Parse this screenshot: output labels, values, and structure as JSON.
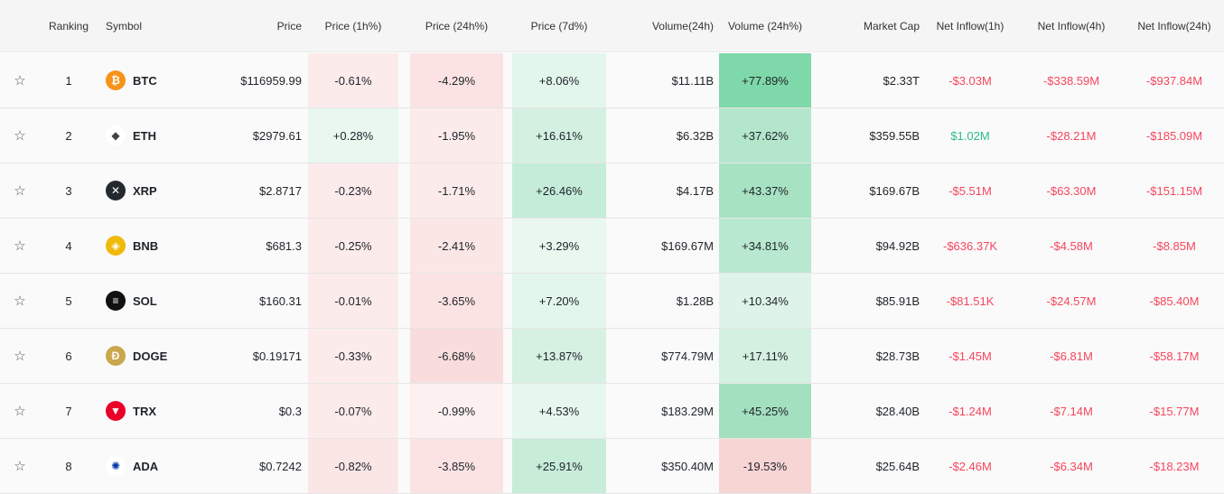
{
  "headers": {
    "ranking": "Ranking",
    "symbol": "Symbol",
    "price": "Price",
    "price_1h": "Price (1h%)",
    "price_24h": "Price (24h%)",
    "price_7d": "Price (7d%)",
    "volume_24h": "Volume(24h)",
    "volume_24h_pct": "Volume (24h%)",
    "market_cap": "Market Cap",
    "net_inflow_1h": "Net Inflow(1h)",
    "net_inflow_4h": "Net Inflow(4h)",
    "net_inflow_24h": "Net Inflow(24h)"
  },
  "star_icon": "☆",
  "colors": {
    "negative_text": "#f6465d",
    "positive_text": "#2ebd85",
    "heat_red_light": "#fcebeb",
    "heat_red": "#fbe3e3",
    "heat_red_strong": "#f8d5d5",
    "heat_green_light": "#e3f6ec",
    "heat_green": "#c5ecd9",
    "heat_green_strong": "#7fd8a9"
  },
  "rows": [
    {
      "rank": "1",
      "symbol": "BTC",
      "icon": "bitcoin-icon",
      "icon_bg": "#f7931a",
      "icon_glyph": "₿",
      "price": "$116959.99",
      "p1h": "-0.61%",
      "p24h": "-4.29%",
      "p7d": "+8.06%",
      "volume": "$11.11B",
      "v24": "+77.89%",
      "mcap": "$2.33T",
      "n1h": "-$3.03M",
      "n4h": "-$338.59M",
      "n24h": "-$937.84M",
      "bg": {
        "p1h": "#fcebeb",
        "p24h": "#fbe3e3",
        "p7d": "#e3f6ec",
        "v24": "#7fd8a9"
      },
      "sign": {
        "n1h": "neg",
        "n4h": "neg",
        "n24h": "neg"
      }
    },
    {
      "rank": "2",
      "symbol": "ETH",
      "icon": "ethereum-icon",
      "icon_bg": "#ffffff",
      "icon_glyph": "◆",
      "price": "$2979.61",
      "p1h": "+0.28%",
      "p24h": "-1.95%",
      "p7d": "+16.61%",
      "volume": "$6.32B",
      "v24": "+37.62%",
      "mcap": "$359.55B",
      "n1h": "$1.02M",
      "n4h": "-$28.21M",
      "n24h": "-$185.09M",
      "bg": {
        "p1h": "#e9f7ef",
        "p24h": "#fcebeb",
        "p7d": "#d4f0e1",
        "v24": "#b3e6cb"
      },
      "sign": {
        "n1h": "pos",
        "n4h": "neg",
        "n24h": "neg"
      }
    },
    {
      "rank": "3",
      "symbol": "XRP",
      "icon": "xrp-icon",
      "icon_bg": "#23292f",
      "icon_glyph": "✕",
      "price": "$2.8717",
      "p1h": "-0.23%",
      "p24h": "-1.71%",
      "p7d": "+26.46%",
      "volume": "$4.17B",
      "v24": "+43.37%",
      "mcap": "$169.67B",
      "n1h": "-$5.51M",
      "n4h": "-$63.30M",
      "n24h": "-$151.15M",
      "bg": {
        "p1h": "#fcebeb",
        "p24h": "#fcebeb",
        "p7d": "#c5ecd9",
        "v24": "#a7e2c3"
      },
      "sign": {
        "n1h": "neg",
        "n4h": "neg",
        "n24h": "neg"
      }
    },
    {
      "rank": "4",
      "symbol": "BNB",
      "icon": "bnb-icon",
      "icon_bg": "#f0b90b",
      "icon_glyph": "◈",
      "price": "$681.3",
      "p1h": "-0.25%",
      "p24h": "-2.41%",
      "p7d": "+3.29%",
      "volume": "$169.67M",
      "v24": "+34.81%",
      "mcap": "$94.92B",
      "n1h": "-$636.37K",
      "n4h": "-$4.58M",
      "n24h": "-$8.85M",
      "bg": {
        "p1h": "#fcebeb",
        "p24h": "#fbe6e6",
        "p7d": "#e9f7ef",
        "v24": "#b8e8cf"
      },
      "sign": {
        "n1h": "neg",
        "n4h": "neg",
        "n24h": "neg"
      }
    },
    {
      "rank": "5",
      "symbol": "SOL",
      "icon": "solana-icon",
      "icon_bg": "#111111",
      "icon_glyph": "≡",
      "price": "$160.31",
      "p1h": "-0.01%",
      "p24h": "-3.65%",
      "p7d": "+7.20%",
      "volume": "$1.28B",
      "v24": "+10.34%",
      "mcap": "$85.91B",
      "n1h": "-$81.51K",
      "n4h": "-$24.57M",
      "n24h": "-$85.40M",
      "bg": {
        "p1h": "#fcebeb",
        "p24h": "#fbe3e3",
        "p7d": "#e3f6ec",
        "v24": "#dff4e8"
      },
      "sign": {
        "n1h": "neg",
        "n4h": "neg",
        "n24h": "neg"
      }
    },
    {
      "rank": "6",
      "symbol": "DOGE",
      "icon": "dogecoin-icon",
      "icon_bg": "#c9a74a",
      "icon_glyph": "Ð",
      "price": "$0.19171",
      "p1h": "-0.33%",
      "p24h": "-6.68%",
      "p7d": "+13.87%",
      "volume": "$774.79M",
      "v24": "+17.11%",
      "mcap": "$28.73B",
      "n1h": "-$1.45M",
      "n4h": "-$6.81M",
      "n24h": "-$58.17M",
      "bg": {
        "p1h": "#fcebeb",
        "p24h": "#f9dcdc",
        "p7d": "#d6f0e2",
        "v24": "#d3f0e0"
      },
      "sign": {
        "n1h": "neg",
        "n4h": "neg",
        "n24h": "neg"
      }
    },
    {
      "rank": "7",
      "symbol": "TRX",
      "icon": "tron-icon",
      "icon_bg": "#eb0029",
      "icon_glyph": "▼",
      "price": "$0.3",
      "p1h": "-0.07%",
      "p24h": "-0.99%",
      "p7d": "+4.53%",
      "volume": "$183.29M",
      "v24": "+45.25%",
      "mcap": "$28.40B",
      "n1h": "-$1.24M",
      "n4h": "-$7.14M",
      "n24h": "-$15.77M",
      "bg": {
        "p1h": "#fcebeb",
        "p24h": "#fcf0f0",
        "p7d": "#e6f7ed",
        "v24": "#a3e0bf"
      },
      "sign": {
        "n1h": "neg",
        "n4h": "neg",
        "n24h": "neg"
      }
    },
    {
      "rank": "8",
      "symbol": "ADA",
      "icon": "cardano-icon",
      "icon_bg": "#ffffff",
      "icon_glyph": "✺",
      "price": "$0.7242",
      "p1h": "-0.82%",
      "p24h": "-3.85%",
      "p7d": "+25.91%",
      "volume": "$350.40M",
      "v24": "-19.53%",
      "mcap": "$25.64B",
      "n1h": "-$2.46M",
      "n4h": "-$6.34M",
      "n24h": "-$18.23M",
      "bg": {
        "p1h": "#fbe6e6",
        "p24h": "#fbe3e3",
        "p7d": "#c7edd9",
        "v24": "#f8d5d5"
      },
      "sign": {
        "n1h": "neg",
        "n4h": "neg",
        "n24h": "neg"
      }
    }
  ]
}
